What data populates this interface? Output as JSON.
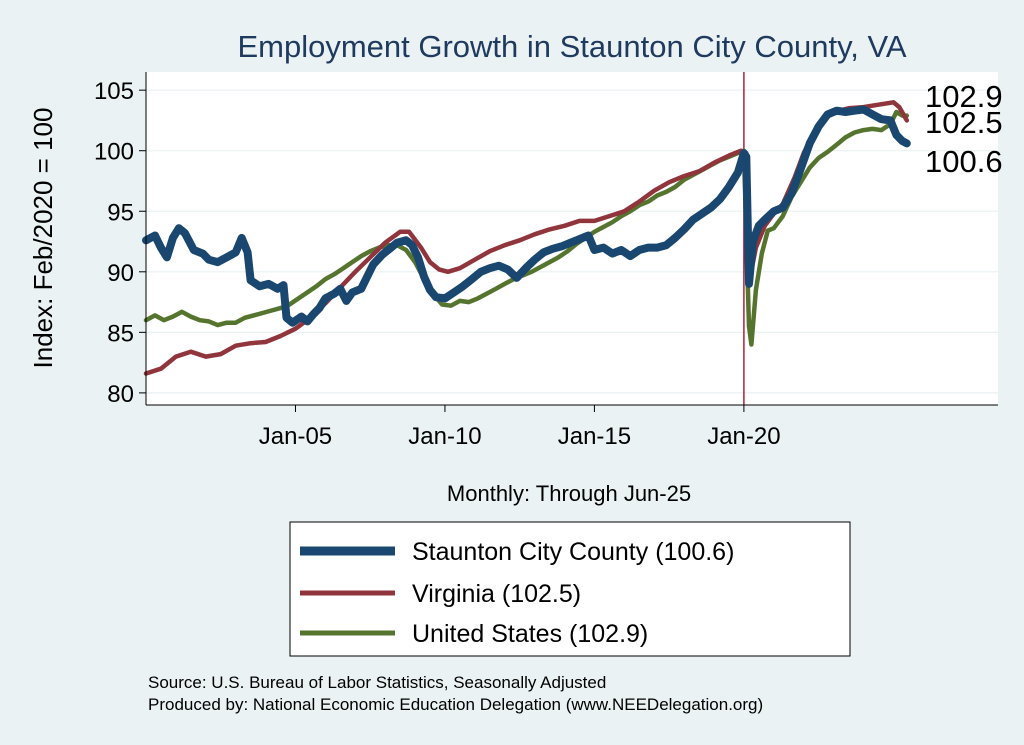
{
  "chart_data": {
    "type": "line",
    "title": "Employment Growth in Staunton City  County, VA",
    "ylabel": "Index: Feb/2020 = 100",
    "xlabel": "Monthly: Through Jun-25",
    "x_tick_labels": [
      "Jan-05",
      "Jan-10",
      "Jan-15",
      "Jan-20"
    ],
    "y_ticks": [
      80,
      85,
      90,
      95,
      100,
      105
    ],
    "ylim": [
      79,
      106.5
    ],
    "xlim": [
      2000.0,
      2028.5
    ],
    "grid": true,
    "reference_line": {
      "x": 2020.0,
      "color": "#b0213b"
    },
    "end_labels": [
      "102.9",
      "102.5",
      "100.6"
    ],
    "legend": {
      "position": "bottom",
      "entries": [
        "Staunton City  County (100.6)",
        "Virginia (102.5)",
        "United States (102.9)"
      ]
    },
    "series": [
      {
        "name": "Staunton City  County",
        "color": "#1a476f",
        "points": [
          [
            2000.0,
            92.6
          ],
          [
            2000.3,
            93.0
          ],
          [
            2000.5,
            92.0
          ],
          [
            2000.7,
            91.2
          ],
          [
            2000.9,
            92.8
          ],
          [
            2001.1,
            93.6
          ],
          [
            2001.3,
            93.2
          ],
          [
            2001.6,
            91.8
          ],
          [
            2001.9,
            91.5
          ],
          [
            2002.1,
            91.0
          ],
          [
            2002.4,
            90.8
          ],
          [
            2002.7,
            91.2
          ],
          [
            2003.0,
            91.6
          ],
          [
            2003.2,
            92.8
          ],
          [
            2003.4,
            91.6
          ],
          [
            2003.5,
            89.3
          ],
          [
            2003.8,
            88.8
          ],
          [
            2004.1,
            89.0
          ],
          [
            2004.4,
            88.6
          ],
          [
            2004.6,
            88.9
          ],
          [
            2004.7,
            86.2
          ],
          [
            2004.9,
            85.8
          ],
          [
            2005.2,
            86.3
          ],
          [
            2005.4,
            85.9
          ],
          [
            2005.6,
            86.5
          ],
          [
            2005.8,
            87.0
          ],
          [
            2006.0,
            87.8
          ],
          [
            2006.3,
            88.2
          ],
          [
            2006.5,
            88.6
          ],
          [
            2006.7,
            87.6
          ],
          [
            2006.9,
            88.3
          ],
          [
            2007.2,
            88.6
          ],
          [
            2007.4,
            89.6
          ],
          [
            2007.6,
            90.6
          ],
          [
            2007.9,
            91.4
          ],
          [
            2008.2,
            92.0
          ],
          [
            2008.4,
            92.4
          ],
          [
            2008.7,
            92.6
          ],
          [
            2008.9,
            92.2
          ],
          [
            2009.1,
            91.2
          ],
          [
            2009.3,
            89.6
          ],
          [
            2009.5,
            88.5
          ],
          [
            2009.7,
            87.9
          ],
          [
            2010.0,
            87.8
          ],
          [
            2010.3,
            88.3
          ],
          [
            2010.6,
            88.8
          ],
          [
            2010.9,
            89.4
          ],
          [
            2011.2,
            90.0
          ],
          [
            2011.5,
            90.3
          ],
          [
            2011.8,
            90.5
          ],
          [
            2012.1,
            90.2
          ],
          [
            2012.4,
            89.5
          ],
          [
            2012.7,
            90.3
          ],
          [
            2013.0,
            91.0
          ],
          [
            2013.3,
            91.6
          ],
          [
            2013.6,
            91.9
          ],
          [
            2013.9,
            92.1
          ],
          [
            2014.2,
            92.4
          ],
          [
            2014.5,
            92.7
          ],
          [
            2014.8,
            93.0
          ],
          [
            2015.0,
            91.8
          ],
          [
            2015.3,
            92.0
          ],
          [
            2015.6,
            91.5
          ],
          [
            2015.9,
            91.8
          ],
          [
            2016.2,
            91.3
          ],
          [
            2016.5,
            91.8
          ],
          [
            2016.8,
            92.0
          ],
          [
            2017.1,
            92.0
          ],
          [
            2017.4,
            92.2
          ],
          [
            2017.7,
            92.8
          ],
          [
            2018.0,
            93.5
          ],
          [
            2018.3,
            94.3
          ],
          [
            2018.6,
            94.8
          ],
          [
            2018.9,
            95.3
          ],
          [
            2019.2,
            96.0
          ],
          [
            2019.5,
            97.0
          ],
          [
            2019.8,
            98.2
          ],
          [
            2020.0,
            99.8
          ],
          [
            2020.08,
            99.5
          ],
          [
            2020.17,
            89.0
          ],
          [
            2020.3,
            92.5
          ],
          [
            2020.5,
            93.8
          ],
          [
            2020.7,
            94.3
          ],
          [
            2021.0,
            95.0
          ],
          [
            2021.3,
            95.3
          ],
          [
            2021.6,
            96.5
          ],
          [
            2021.9,
            98.5
          ],
          [
            2022.2,
            100.6
          ],
          [
            2022.5,
            102.0
          ],
          [
            2022.8,
            103.0
          ],
          [
            2023.1,
            103.3
          ],
          [
            2023.4,
            103.2
          ],
          [
            2023.7,
            103.3
          ],
          [
            2024.0,
            103.4
          ],
          [
            2024.3,
            103.0
          ],
          [
            2024.6,
            102.6
          ],
          [
            2024.9,
            102.5
          ],
          [
            2025.1,
            101.3
          ],
          [
            2025.3,
            100.8
          ],
          [
            2025.45,
            100.6
          ]
        ]
      },
      {
        "name": "Virginia",
        "color": "#90353b",
        "points": [
          [
            2000.0,
            81.6
          ],
          [
            2000.5,
            82.0
          ],
          [
            2001.0,
            83.0
          ],
          [
            2001.5,
            83.4
          ],
          [
            2002.0,
            83.0
          ],
          [
            2002.5,
            83.2
          ],
          [
            2003.0,
            83.9
          ],
          [
            2003.5,
            84.1
          ],
          [
            2004.0,
            84.2
          ],
          [
            2004.5,
            84.7
          ],
          [
            2005.0,
            85.3
          ],
          [
            2005.5,
            86.2
          ],
          [
            2006.0,
            87.4
          ],
          [
            2006.5,
            88.7
          ],
          [
            2007.0,
            90.0
          ],
          [
            2007.5,
            91.2
          ],
          [
            2008.0,
            92.4
          ],
          [
            2008.5,
            93.3
          ],
          [
            2008.8,
            93.3
          ],
          [
            2009.2,
            92.0
          ],
          [
            2009.5,
            90.8
          ],
          [
            2009.8,
            90.2
          ],
          [
            2010.1,
            90.0
          ],
          [
            2010.5,
            90.3
          ],
          [
            2011.0,
            91.0
          ],
          [
            2011.5,
            91.7
          ],
          [
            2012.0,
            92.2
          ],
          [
            2012.5,
            92.6
          ],
          [
            2013.0,
            93.1
          ],
          [
            2013.5,
            93.5
          ],
          [
            2014.0,
            93.8
          ],
          [
            2014.5,
            94.2
          ],
          [
            2015.0,
            94.2
          ],
          [
            2015.5,
            94.6
          ],
          [
            2016.0,
            95.0
          ],
          [
            2016.5,
            95.8
          ],
          [
            2017.0,
            96.7
          ],
          [
            2017.5,
            97.4
          ],
          [
            2018.0,
            97.9
          ],
          [
            2018.5,
            98.3
          ],
          [
            2019.0,
            99.0
          ],
          [
            2019.5,
            99.6
          ],
          [
            2019.9,
            100.0
          ],
          [
            2020.08,
            99.8
          ],
          [
            2020.2,
            89.5
          ],
          [
            2020.4,
            92.0
          ],
          [
            2020.7,
            93.8
          ],
          [
            2021.0,
            94.8
          ],
          [
            2021.3,
            95.6
          ],
          [
            2021.7,
            97.8
          ],
          [
            2022.0,
            99.8
          ],
          [
            2022.3,
            101.3
          ],
          [
            2022.7,
            102.6
          ],
          [
            2023.0,
            103.2
          ],
          [
            2023.5,
            103.5
          ],
          [
            2024.0,
            103.6
          ],
          [
            2024.5,
            103.8
          ],
          [
            2025.0,
            104.0
          ],
          [
            2025.2,
            103.6
          ],
          [
            2025.45,
            102.5
          ]
        ]
      },
      {
        "name": "United States",
        "color": "#55752f",
        "points": [
          [
            2000.0,
            86.0
          ],
          [
            2000.3,
            86.4
          ],
          [
            2000.6,
            86.0
          ],
          [
            2000.9,
            86.3
          ],
          [
            2001.2,
            86.7
          ],
          [
            2001.5,
            86.3
          ],
          [
            2001.8,
            86.0
          ],
          [
            2002.1,
            85.9
          ],
          [
            2002.4,
            85.6
          ],
          [
            2002.7,
            85.8
          ],
          [
            2003.0,
            85.8
          ],
          [
            2003.3,
            86.2
          ],
          [
            2003.6,
            86.4
          ],
          [
            2003.9,
            86.6
          ],
          [
            2004.2,
            86.8
          ],
          [
            2004.5,
            87.0
          ],
          [
            2004.8,
            87.3
          ],
          [
            2005.1,
            87.8
          ],
          [
            2005.4,
            88.3
          ],
          [
            2005.7,
            88.8
          ],
          [
            2006.0,
            89.4
          ],
          [
            2006.3,
            89.8
          ],
          [
            2006.6,
            90.3
          ],
          [
            2006.9,
            90.8
          ],
          [
            2007.2,
            91.3
          ],
          [
            2007.5,
            91.7
          ],
          [
            2007.8,
            92.0
          ],
          [
            2008.1,
            92.2
          ],
          [
            2008.4,
            92.2
          ],
          [
            2008.7,
            91.8
          ],
          [
            2009.0,
            90.8
          ],
          [
            2009.3,
            89.4
          ],
          [
            2009.6,
            88.2
          ],
          [
            2009.9,
            87.3
          ],
          [
            2010.2,
            87.2
          ],
          [
            2010.5,
            87.6
          ],
          [
            2010.8,
            87.5
          ],
          [
            2011.1,
            87.8
          ],
          [
            2011.4,
            88.2
          ],
          [
            2011.7,
            88.6
          ],
          [
            2012.0,
            89.0
          ],
          [
            2012.3,
            89.4
          ],
          [
            2012.6,
            89.7
          ],
          [
            2012.9,
            90.0
          ],
          [
            2013.2,
            90.4
          ],
          [
            2013.5,
            90.8
          ],
          [
            2013.8,
            91.2
          ],
          [
            2014.1,
            91.7
          ],
          [
            2014.4,
            92.3
          ],
          [
            2014.7,
            92.8
          ],
          [
            2015.0,
            93.3
          ],
          [
            2015.3,
            93.7
          ],
          [
            2015.6,
            94.1
          ],
          [
            2015.9,
            94.6
          ],
          [
            2016.2,
            95.0
          ],
          [
            2016.5,
            95.5
          ],
          [
            2016.8,
            95.8
          ],
          [
            2017.1,
            96.3
          ],
          [
            2017.4,
            96.6
          ],
          [
            2017.7,
            97.0
          ],
          [
            2018.0,
            97.6
          ],
          [
            2018.3,
            98.0
          ],
          [
            2018.6,
            98.4
          ],
          [
            2018.9,
            98.8
          ],
          [
            2019.2,
            99.2
          ],
          [
            2019.5,
            99.5
          ],
          [
            2019.8,
            99.8
          ],
          [
            2020.0,
            100.0
          ],
          [
            2020.17,
            85.5
          ],
          [
            2020.25,
            84.0
          ],
          [
            2020.4,
            88.5
          ],
          [
            2020.6,
            91.5
          ],
          [
            2020.8,
            93.4
          ],
          [
            2021.0,
            93.6
          ],
          [
            2021.3,
            94.6
          ],
          [
            2021.6,
            96.2
          ],
          [
            2021.9,
            97.4
          ],
          [
            2022.2,
            98.6
          ],
          [
            2022.5,
            99.4
          ],
          [
            2022.8,
            99.9
          ],
          [
            2023.1,
            100.5
          ],
          [
            2023.4,
            101.1
          ],
          [
            2023.7,
            101.5
          ],
          [
            2024.0,
            101.7
          ],
          [
            2024.3,
            101.8
          ],
          [
            2024.6,
            101.7
          ],
          [
            2024.9,
            102.2
          ],
          [
            2025.1,
            103.2
          ],
          [
            2025.3,
            102.9
          ],
          [
            2025.45,
            102.9
          ]
        ]
      }
    ]
  },
  "source_line1": "Source: U.S. Bureau of Labor Statistics, Seasonally Adjusted",
  "source_line2": "Produced by: National Economic Education Delegation (www.NEEDelegation.org)"
}
